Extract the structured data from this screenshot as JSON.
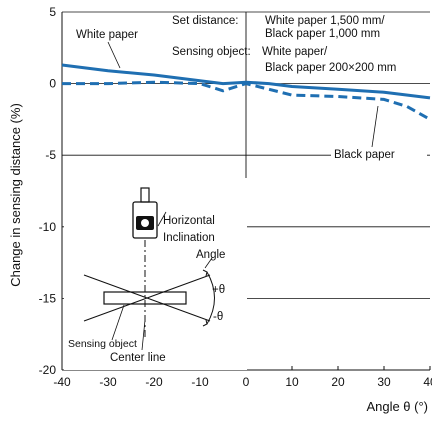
{
  "chart_data": {
    "type": "line",
    "ylabel": "Change in sensing distance (%)",
    "xlabel": "Angle θ (°)",
    "xlim": [
      -40,
      40
    ],
    "ylim": [
      -20,
      5
    ],
    "xticks": [
      -40,
      -30,
      -20,
      -10,
      0,
      10,
      20,
      30,
      40
    ],
    "yticks": [
      5,
      0,
      -5,
      -10,
      -15,
      -20
    ],
    "grid": "horizontal",
    "series": [
      {
        "name": "White paper",
        "style": "solid",
        "color": "#1f6fb2",
        "x": [
          -40,
          -30,
          -20,
          -10,
          -5,
          0,
          5,
          10,
          20,
          30,
          40
        ],
        "y": [
          1.3,
          0.9,
          0.6,
          0.2,
          0.0,
          0.1,
          0.0,
          -0.2,
          -0.4,
          -0.6,
          -1.0
        ]
      },
      {
        "name": "Black paper",
        "style": "dashed",
        "color": "#1f6fb2",
        "x": [
          -40,
          -30,
          -20,
          -10,
          -5,
          0,
          5,
          10,
          20,
          30,
          35,
          40
        ],
        "y": [
          0.0,
          0.0,
          0.1,
          0.0,
          -0.5,
          0.0,
          -0.4,
          -0.8,
          -0.9,
          -1.1,
          -1.6,
          -2.5
        ]
      }
    ],
    "annotations": {
      "set_distance_label": "Set distance:",
      "set_distance_line1": "White paper 1,500 mm/",
      "set_distance_line2": "Black paper 1,000 mm",
      "sensing_object_label": "Sensing object:",
      "sensing_object_line1": "White paper/",
      "sensing_object_line2": "Black paper 200×200 mm"
    },
    "inset": {
      "horizontal": "Horizontal",
      "inclination": "Inclination",
      "angle": "Angle",
      "plus_theta": "+θ",
      "minus_theta": "-θ",
      "sensing_object": "Sensing object",
      "center_line": "Center line"
    }
  }
}
